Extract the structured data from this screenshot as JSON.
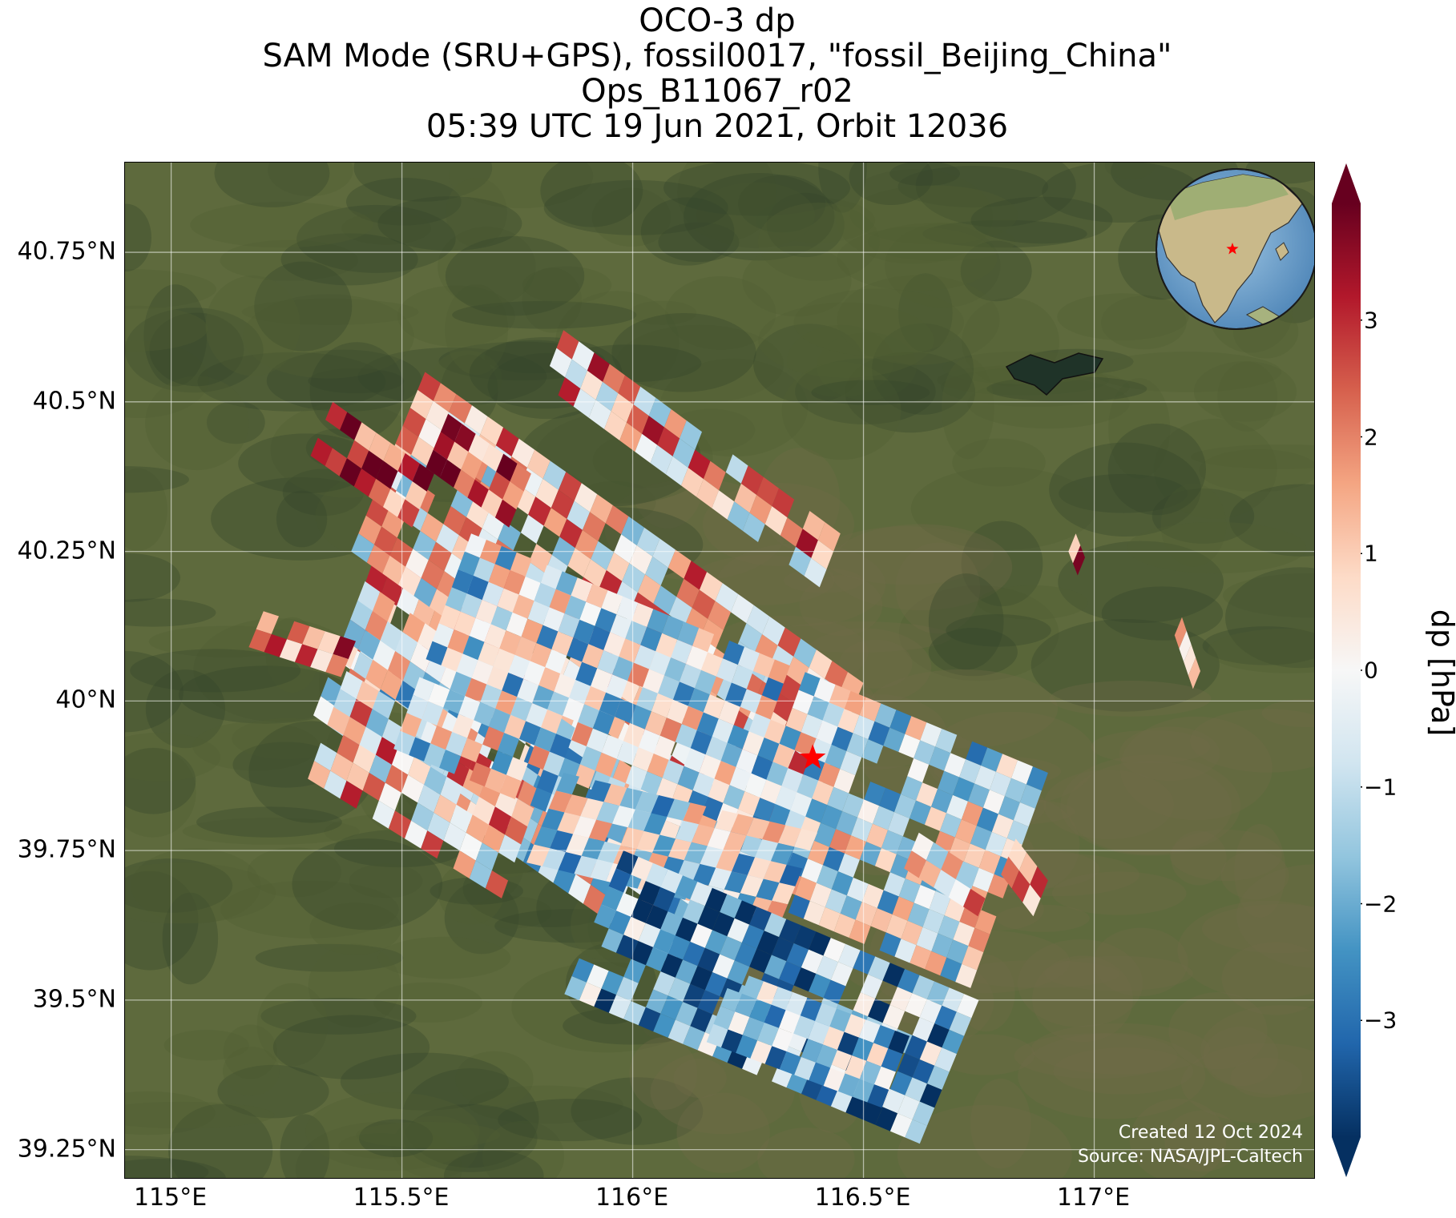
{
  "title": {
    "line1": "OCO-3 dp",
    "line2": "SAM Mode (SRU+GPS), fossil0017, \"fossil_Beijing_China\"",
    "line3": "Ops_B11067_r02",
    "line4": "05:39 UTC 19 Jun 2021, Orbit 12036"
  },
  "credits": {
    "created": "Created 12 Oct 2024",
    "source": "Source: NASA/JPL-Caltech"
  },
  "axes": {
    "lon_range": [
      114.9,
      117.48
    ],
    "lat_range": [
      39.2,
      40.9
    ],
    "lat_ticks": [
      {
        "value": 40.75,
        "label": "40.75°N"
      },
      {
        "value": 40.5,
        "label": "40.5°N"
      },
      {
        "value": 40.25,
        "label": "40.25°N"
      },
      {
        "value": 40.0,
        "label": "40°N"
      },
      {
        "value": 39.75,
        "label": "39.75°N"
      },
      {
        "value": 39.5,
        "label": "39.5°N"
      },
      {
        "value": 39.25,
        "label": "39.25°N"
      }
    ],
    "lon_ticks": [
      {
        "value": 115.0,
        "label": "115°E"
      },
      {
        "value": 115.5,
        "label": "115.5°E"
      },
      {
        "value": 116.0,
        "label": "116°E"
      },
      {
        "value": 116.5,
        "label": "116.5°E"
      },
      {
        "value": 117.0,
        "label": "117°E"
      }
    ],
    "gridlines": true
  },
  "target": {
    "lon": 116.39,
    "lat": 39.905,
    "marker": "red-star"
  },
  "inset_globe": {
    "center_lon": 116.4,
    "center_lat": 39.9,
    "marker": "red-star"
  },
  "colorbar": {
    "label": "dp [hPa]",
    "vmin": -4,
    "vmax": 4,
    "extend": "both",
    "colormap": "RdBu_r",
    "ticks": [
      {
        "value": 3,
        "label": "3"
      },
      {
        "value": 2,
        "label": "2"
      },
      {
        "value": 1,
        "label": "1"
      },
      {
        "value": 0,
        "label": "0"
      },
      {
        "value": -1,
        "label": "−1"
      },
      {
        "value": -2,
        "label": "−2"
      },
      {
        "value": -3,
        "label": "−3"
      }
    ],
    "stops": [
      "#053061",
      "#2166ac",
      "#4393c3",
      "#92c5de",
      "#d1e5f0",
      "#f7f7f7",
      "#fddbc7",
      "#f4a582",
      "#d6604d",
      "#b2182b",
      "#67001f"
    ]
  },
  "colors": {
    "terrain_dark": "#34452a",
    "terrain_mid": "#4f5f34",
    "plain": "#6f6b48",
    "water": "#1f3328",
    "star": "#ff0000"
  },
  "chart_data": {
    "type": "map",
    "variable": "dp",
    "units": "hPa",
    "swaths": [
      {
        "lon0": 115.45,
        "lat0": 40.26,
        "lon1": 115.93,
        "lat1": 40.0,
        "rows": 6,
        "cols": 14,
        "lon_step": -0.015,
        "lat_step": 0.032,
        "bias": 1.2
      },
      {
        "lon0": 115.42,
        "lat0": 40.2,
        "lon1": 116.2,
        "lat1": 39.78,
        "rows": 7,
        "cols": 24,
        "lon_step": -0.016,
        "lat_step": 0.032,
        "bias": -0.4
      },
      {
        "lon0": 115.38,
        "lat0": 40.05,
        "lon1": 115.8,
        "lat1": 39.85,
        "rows": 6,
        "cols": 12,
        "lon_step": -0.014,
        "lat_step": 0.03,
        "bias": 0.6
      },
      {
        "lon0": 115.55,
        "lat0": 40.55,
        "lon1": 116.5,
        "lat1": 40.03,
        "rows": 10,
        "cols": 28,
        "lon_step": -0.016,
        "lat_step": 0.03,
        "bias": 0.6
      },
      {
        "lon0": 115.85,
        "lat0": 40.62,
        "lon1": 116.45,
        "lat1": 40.28,
        "rows": 3,
        "cols": 18,
        "lon_step": -0.015,
        "lat_step": 0.03,
        "bias": 0.9
      },
      {
        "lon0": 115.65,
        "lat0": 40.28,
        "lon1": 116.9,
        "lat1": 39.88,
        "rows": 12,
        "cols": 38,
        "lon_step": -0.014,
        "lat_step": 0.03,
        "bias": -0.5
      },
      {
        "lon0": 115.85,
        "lat0": 39.88,
        "lon1": 116.4,
        "lat1": 39.78,
        "rows": 5,
        "cols": 16,
        "lon_step": -0.016,
        "lat_step": 0.03,
        "bias": -0.7
      },
      {
        "lon0": 115.98,
        "lat0": 39.75,
        "lon1": 116.75,
        "lat1": 39.5,
        "rows": 8,
        "cols": 24,
        "lon_step": -0.016,
        "lat_step": 0.03,
        "bias": -2.0
      },
      {
        "lon0": 116.22,
        "lat0": 39.55,
        "lon1": 116.6,
        "lat1": 39.44,
        "rows": 4,
        "cols": 12,
        "lon_step": -0.015,
        "lat_step": 0.03,
        "bias": -1.6
      },
      {
        "lon0": 115.6,
        "lat0": 40.48,
        "lon1": 115.78,
        "lat1": 40.38,
        "rows": 3,
        "cols": 6,
        "lon_step": -0.016,
        "lat_step": 0.03,
        "bias": 2.8
      },
      {
        "lon0": 115.35,
        "lat0": 40.5,
        "lon1": 115.57,
        "lat1": 40.38,
        "rows": 3,
        "cols": 7,
        "lon_step": -0.016,
        "lat_step": 0.03,
        "bias": 3.0
      },
      {
        "lon0": 115.2,
        "lat0": 40.15,
        "lon1": 115.4,
        "lat1": 40.1,
        "rows": 2,
        "cols": 6,
        "lon_step": -0.016,
        "lat_step": 0.03,
        "bias": 1.5
      },
      {
        "lon0": 116.62,
        "lat0": 39.78,
        "lon1": 116.78,
        "lat1": 39.7,
        "rows": 2,
        "cols": 5,
        "lon_step": -0.016,
        "lat_step": 0.03,
        "bias": 0.4
      },
      {
        "lon0": 116.83,
        "lat0": 39.77,
        "lon1": 116.9,
        "lat1": 39.7,
        "rows": 2,
        "cols": 3,
        "lon_step": -0.016,
        "lat_step": 0.03,
        "bias": 2.0
      },
      {
        "lon0": 117.19,
        "lat0": 40.14,
        "lon1": 117.23,
        "lat1": 40.05,
        "rows": 1,
        "cols": 4,
        "lon_step": -0.016,
        "lat_step": 0.03,
        "bias": 2.5
      },
      {
        "lon0": 116.96,
        "lat0": 40.28,
        "lon1": 116.99,
        "lat1": 40.22,
        "rows": 1,
        "cols": 3,
        "lon_step": -0.016,
        "lat_step": 0.03,
        "bias": 3.3
      }
    ]
  }
}
